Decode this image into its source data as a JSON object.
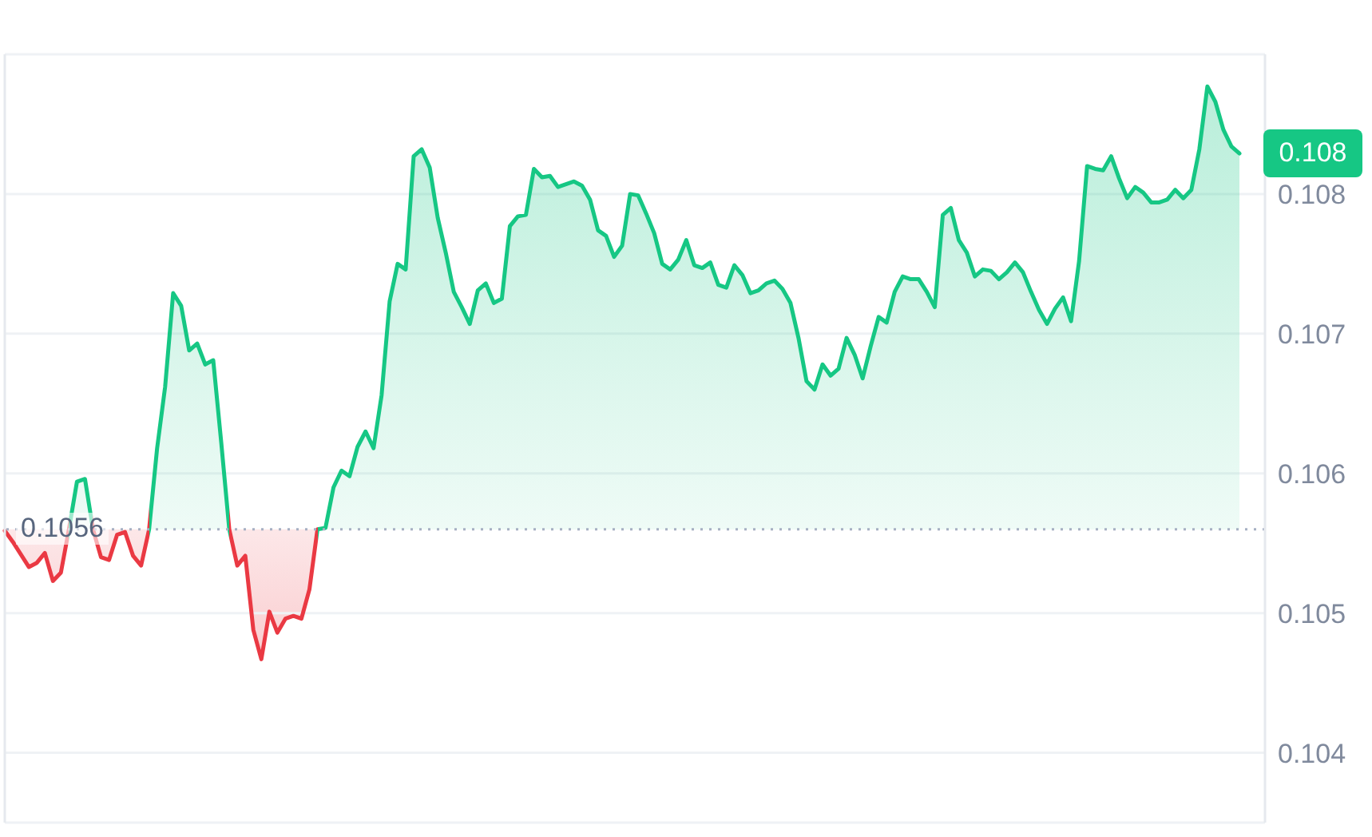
{
  "chart_data": {
    "type": "area",
    "categories": [
      null,
      null,
      null,
      null,
      null,
      null,
      null,
      null,
      null,
      null,
      null,
      null,
      null,
      null,
      null,
      null,
      null,
      null,
      null,
      null,
      null,
      null,
      null,
      null,
      null,
      null,
      null,
      null,
      null,
      null,
      null,
      null,
      null,
      null,
      null,
      null,
      null,
      null,
      null,
      null,
      null,
      null,
      null,
      null,
      null,
      null,
      null,
      null,
      null,
      null,
      null,
      null,
      null,
      null,
      null,
      null,
      null,
      null,
      null,
      null,
      null,
      null,
      null,
      null,
      null,
      null,
      null,
      null,
      null,
      null,
      null,
      null,
      null,
      null,
      null,
      null,
      null,
      null,
      null,
      null,
      null,
      null,
      null,
      null,
      null,
      null,
      null,
      null,
      null,
      null,
      null,
      null,
      null,
      null,
      null,
      null,
      null,
      null,
      null,
      null,
      null,
      null,
      null,
      null,
      null,
      null,
      null,
      null,
      null,
      null,
      null,
      null,
      null,
      null,
      null,
      null,
      null,
      null,
      null,
      null,
      null,
      null,
      null,
      null,
      null,
      null,
      null,
      null,
      null,
      null,
      null,
      null,
      null,
      null,
      null,
      null,
      null,
      null,
      null,
      null,
      null,
      null,
      null,
      null,
      null,
      null,
      null,
      null,
      null,
      null,
      null,
      null,
      null,
      null,
      null
    ],
    "series": [
      {
        "values": [
          0.10559,
          0.10551,
          0.10542,
          0.10533,
          0.10536,
          0.10543,
          0.10523,
          0.10529,
          0.1056,
          0.10594,
          0.10596,
          0.1056,
          0.1054,
          0.10538,
          0.10556,
          0.10558,
          0.10541,
          0.10534,
          0.1056,
          0.10618,
          0.10662,
          0.10729,
          0.1072,
          0.10688,
          0.10693,
          0.10678,
          0.10681,
          0.10622,
          0.1056,
          0.10534,
          0.10541,
          0.10488,
          0.10467,
          0.10501,
          0.10486,
          0.10496,
          0.10498,
          0.10496,
          0.10517,
          0.1056,
          0.10561,
          0.1059,
          0.10602,
          0.10598,
          0.10619,
          0.1063,
          0.10618,
          0.10656,
          0.10723,
          0.1075,
          0.10746,
          0.10827,
          0.10832,
          0.10819,
          0.10783,
          0.10758,
          0.1073,
          0.10719,
          0.10707,
          0.10731,
          0.10736,
          0.10722,
          0.10725,
          0.10777,
          0.10784,
          0.10785,
          0.10818,
          0.10812,
          0.10813,
          0.10805,
          0.10807,
          0.10809,
          0.10806,
          0.10796,
          0.10774,
          0.1077,
          0.10755,
          0.10763,
          0.108,
          0.10799,
          0.10786,
          0.10772,
          0.1075,
          0.10746,
          0.10753,
          0.10767,
          0.10749,
          0.10747,
          0.10751,
          0.10735,
          0.10733,
          0.10749,
          0.10742,
          0.10729,
          0.10731,
          0.10736,
          0.10738,
          0.10732,
          0.10722,
          0.10697,
          0.10666,
          0.1066,
          0.10678,
          0.1067,
          0.10675,
          0.10697,
          0.10685,
          0.10668,
          0.10691,
          0.10712,
          0.10708,
          0.1073,
          0.10741,
          0.10739,
          0.10739,
          0.1073,
          0.10719,
          0.10785,
          0.1079,
          0.10767,
          0.10758,
          0.10741,
          0.10746,
          0.10745,
          0.10739,
          0.10744,
          0.10751,
          0.10744,
          0.1073,
          0.10717,
          0.10707,
          0.10718,
          0.10726,
          0.10709,
          0.10752,
          0.1082,
          0.10818,
          0.10817,
          0.10827,
          0.10811,
          0.10797,
          0.10805,
          0.10801,
          0.10794,
          0.10794,
          0.10796,
          0.10803,
          0.10797,
          0.10803,
          0.10832,
          0.10877,
          0.10866,
          0.10846,
          0.10834,
          0.10829
        ],
        "colors": [
          "#ea3943",
          "#ea3943",
          "#ea3943",
          "#ea3943",
          "#ea3943",
          "#ea3943",
          "#ea3943",
          "#ea3943",
          "#ea3943",
          "#16c784",
          "#16c784",
          "#16c784",
          "#ea3943",
          "#ea3943",
          "#ea3943",
          "#ea3943",
          "#ea3943",
          "#ea3943",
          "#ea3943",
          "#16c784",
          "#16c784",
          "#16c784",
          "#16c784",
          "#16c784",
          "#16c784",
          "#16c784",
          "#16c784",
          "#16c784",
          "#16c784",
          "#ea3943",
          "#ea3943",
          "#ea3943",
          "#ea3943",
          "#ea3943",
          "#ea3943",
          "#ea3943",
          "#ea3943",
          "#ea3943",
          "#ea3943",
          "#ea3943",
          "#16c784",
          "#16c784",
          "#16c784",
          "#16c784",
          "#16c784",
          "#16c784",
          "#16c784",
          "#16c784",
          "#16c784",
          "#16c784",
          "#16c784",
          "#16c784",
          "#16c784",
          "#16c784",
          "#16c784",
          "#16c784",
          "#16c784",
          "#16c784",
          "#16c784",
          "#16c784",
          "#16c784",
          "#16c784",
          "#16c784",
          "#16c784",
          "#16c784",
          "#16c784",
          "#16c784",
          "#16c784",
          "#16c784",
          "#16c784",
          "#16c784",
          "#16c784",
          "#16c784",
          "#16c784",
          "#16c784",
          "#16c784",
          "#16c784",
          "#16c784",
          "#16c784",
          "#16c784",
          "#16c784",
          "#16c784",
          "#16c784",
          "#16c784",
          "#16c784",
          "#16c784",
          "#16c784",
          "#16c784",
          "#16c784",
          "#16c784",
          "#16c784",
          "#16c784",
          "#16c784",
          "#16c784",
          "#16c784",
          "#16c784",
          "#16c784",
          "#16c784",
          "#16c784",
          "#16c784",
          "#16c784",
          "#16c784",
          "#16c784",
          "#16c784",
          "#16c784",
          "#16c784",
          "#16c784",
          "#16c784",
          "#16c784",
          "#16c784",
          "#16c784",
          "#16c784",
          "#16c784",
          "#16c784",
          "#16c784",
          "#16c784",
          "#16c784",
          "#16c784",
          "#16c784",
          "#16c784",
          "#16c784",
          "#16c784",
          "#16c784",
          "#16c784",
          "#16c784",
          "#16c784",
          "#16c784",
          "#16c784",
          "#16c784",
          "#16c784",
          "#16c784",
          "#16c784",
          "#16c784",
          "#16c784",
          "#16c784",
          "#16c784",
          "#16c784",
          "#16c784",
          "#16c784",
          "#16c784",
          "#16c784",
          "#16c784",
          "#16c784",
          "#16c784",
          "#16c784",
          "#16c784",
          "#16c784",
          "#16c784",
          "#16c784",
          "#16c784",
          "#16c784",
          "#16c784",
          "#16c784",
          "#16c784",
          "#16c784"
        ]
      }
    ],
    "ylim": [
      0.1035,
      0.109
    ],
    "yticks": [
      0.104,
      0.105,
      0.106,
      0.107,
      0.108
    ],
    "grid": "y",
    "tick_labels": "y",
    "ref_lines": [
      {
        "axis": "y",
        "value": 0.1056,
        "label": "0.1056",
        "color": "#a6b0c3",
        "line_style": "dotted"
      }
    ],
    "annotations": [
      "0.108"
    ]
  }
}
